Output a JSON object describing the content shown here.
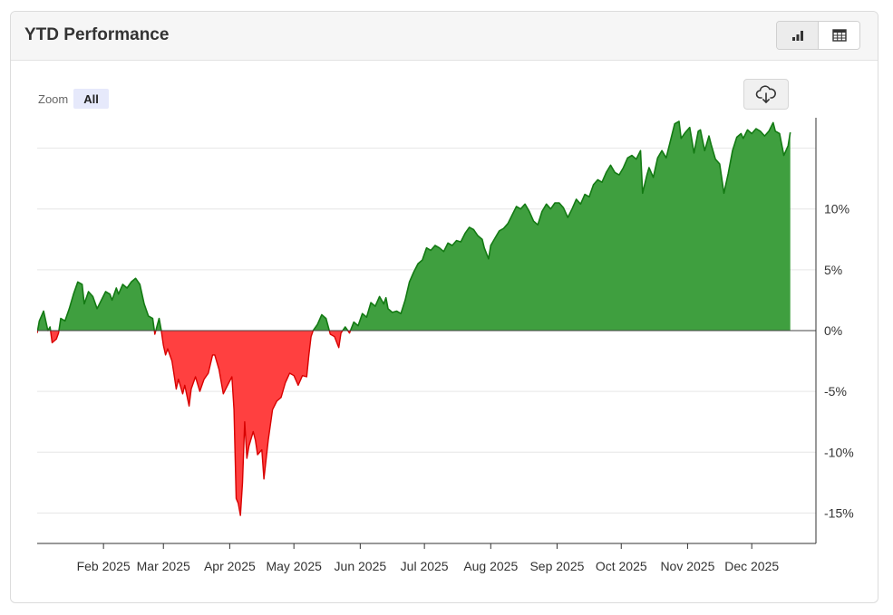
{
  "panel": {
    "title": "YTD Performance",
    "view_toggle": [
      {
        "name": "chart-view",
        "icon": "bar-chart-icon",
        "active": true
      },
      {
        "name": "table-view",
        "icon": "table-icon",
        "active": false
      }
    ]
  },
  "zoom": {
    "label": "Zoom",
    "options": [
      "All"
    ],
    "selected": "All"
  },
  "download": {
    "icon": "cloud-download-icon"
  },
  "colors": {
    "positive": "#3f9f3f",
    "positive_line": "#137a13",
    "negative": "#ff4040",
    "negative_line": "#d80000",
    "grid": "#e6e6e6",
    "axis": "#333333"
  },
  "chart_data": {
    "type": "area",
    "title": "",
    "xlabel": "",
    "ylabel": "",
    "y_unit": "%",
    "ylim": [
      -17.5,
      17.5
    ],
    "y_ticks": [
      -15,
      -10,
      -5,
      0,
      5,
      10
    ],
    "y_tick_labels": [
      "-15%",
      "-10%",
      "-5%",
      "0%",
      "5%",
      "10%"
    ],
    "x_range": [
      "2025-01-01",
      "2025-12-31"
    ],
    "x_ticks": [
      {
        "date": "2025-02-01",
        "label": "Feb 2025"
      },
      {
        "date": "2025-03-01",
        "label": "Mar 2025"
      },
      {
        "date": "2025-04-01",
        "label": "Apr 2025"
      },
      {
        "date": "2025-05-01",
        "label": "May 2025"
      },
      {
        "date": "2025-06-01",
        "label": "Jun 2025"
      },
      {
        "date": "2025-07-01",
        "label": "Jul 2025"
      },
      {
        "date": "2025-08-01",
        "label": "Aug 2025"
      },
      {
        "date": "2025-09-01",
        "label": "Sep 2025"
      },
      {
        "date": "2025-10-01",
        "label": "Oct 2025"
      },
      {
        "date": "2025-11-01",
        "label": "Nov 2025"
      },
      {
        "date": "2025-12-01",
        "label": "Dec 2025"
      }
    ],
    "grid": true,
    "fill_rule": "green above 0%, red below 0%",
    "series": [
      {
        "values": [
          {
            "x": "2025-01-01",
            "y": -0.2
          },
          {
            "x": "2025-01-02",
            "y": 0.8
          },
          {
            "x": "2025-01-04",
            "y": 1.6
          },
          {
            "x": "2025-01-06",
            "y": 0.0
          },
          {
            "x": "2025-01-07",
            "y": 0.3
          },
          {
            "x": "2025-01-08",
            "y": -1.0
          },
          {
            "x": "2025-01-10",
            "y": -0.7
          },
          {
            "x": "2025-01-11",
            "y": -0.2
          },
          {
            "x": "2025-01-12",
            "y": 1.0
          },
          {
            "x": "2025-01-14",
            "y": 0.8
          },
          {
            "x": "2025-01-16",
            "y": 1.8
          },
          {
            "x": "2025-01-18",
            "y": 3.0
          },
          {
            "x": "2025-01-20",
            "y": 4.0
          },
          {
            "x": "2025-01-22",
            "y": 3.8
          },
          {
            "x": "2025-01-23",
            "y": 2.2
          },
          {
            "x": "2025-01-25",
            "y": 3.2
          },
          {
            "x": "2025-01-27",
            "y": 2.8
          },
          {
            "x": "2025-01-29",
            "y": 1.8
          },
          {
            "x": "2025-01-31",
            "y": 2.5
          },
          {
            "x": "2025-02-02",
            "y": 3.2
          },
          {
            "x": "2025-02-04",
            "y": 3.0
          },
          {
            "x": "2025-02-05",
            "y": 2.5
          },
          {
            "x": "2025-02-07",
            "y": 3.5
          },
          {
            "x": "2025-02-08",
            "y": 3.0
          },
          {
            "x": "2025-02-10",
            "y": 3.8
          },
          {
            "x": "2025-02-12",
            "y": 3.5
          },
          {
            "x": "2025-02-14",
            "y": 4.0
          },
          {
            "x": "2025-02-16",
            "y": 4.3
          },
          {
            "x": "2025-02-18",
            "y": 3.8
          },
          {
            "x": "2025-02-20",
            "y": 2.2
          },
          {
            "x": "2025-02-22",
            "y": 1.2
          },
          {
            "x": "2025-02-24",
            "y": 1.0
          },
          {
            "x": "2025-02-25",
            "y": -0.3
          },
          {
            "x": "2025-02-27",
            "y": 1.0
          },
          {
            "x": "2025-02-28",
            "y": 0.0
          },
          {
            "x": "2025-03-01",
            "y": -1.2
          },
          {
            "x": "2025-03-02",
            "y": -2.0
          },
          {
            "x": "2025-03-03",
            "y": -1.5
          },
          {
            "x": "2025-03-05",
            "y": -2.5
          },
          {
            "x": "2025-03-07",
            "y": -4.8
          },
          {
            "x": "2025-03-08",
            "y": -4.0
          },
          {
            "x": "2025-03-10",
            "y": -5.2
          },
          {
            "x": "2025-03-11",
            "y": -4.5
          },
          {
            "x": "2025-03-13",
            "y": -6.2
          },
          {
            "x": "2025-03-14",
            "y": -4.8
          },
          {
            "x": "2025-03-16",
            "y": -3.8
          },
          {
            "x": "2025-03-18",
            "y": -5.0
          },
          {
            "x": "2025-03-20",
            "y": -4.0
          },
          {
            "x": "2025-03-22",
            "y": -3.5
          },
          {
            "x": "2025-03-24",
            "y": -2.0
          },
          {
            "x": "2025-03-25",
            "y": -2.0
          },
          {
            "x": "2025-03-27",
            "y": -3.2
          },
          {
            "x": "2025-03-29",
            "y": -5.2
          },
          {
            "x": "2025-03-31",
            "y": -4.5
          },
          {
            "x": "2025-04-02",
            "y": -3.8
          },
          {
            "x": "2025-04-03",
            "y": -6.5
          },
          {
            "x": "2025-04-04",
            "y": -13.8
          },
          {
            "x": "2025-04-05",
            "y": -14.2
          },
          {
            "x": "2025-04-06",
            "y": -15.2
          },
          {
            "x": "2025-04-07",
            "y": -12.5
          },
          {
            "x": "2025-04-08",
            "y": -7.5
          },
          {
            "x": "2025-04-09",
            "y": -10.5
          },
          {
            "x": "2025-04-10",
            "y": -9.5
          },
          {
            "x": "2025-04-12",
            "y": -8.3
          },
          {
            "x": "2025-04-13",
            "y": -9.0
          },
          {
            "x": "2025-04-14",
            "y": -10.2
          },
          {
            "x": "2025-04-16",
            "y": -9.8
          },
          {
            "x": "2025-04-17",
            "y": -12.2
          },
          {
            "x": "2025-04-19",
            "y": -9.0
          },
          {
            "x": "2025-04-21",
            "y": -6.5
          },
          {
            "x": "2025-04-23",
            "y": -5.8
          },
          {
            "x": "2025-04-25",
            "y": -5.5
          },
          {
            "x": "2025-04-27",
            "y": -4.3
          },
          {
            "x": "2025-04-29",
            "y": -3.5
          },
          {
            "x": "2025-05-01",
            "y": -3.7
          },
          {
            "x": "2025-05-03",
            "y": -4.5
          },
          {
            "x": "2025-05-05",
            "y": -3.7
          },
          {
            "x": "2025-05-07",
            "y": -3.8
          },
          {
            "x": "2025-05-08",
            "y": -2.0
          },
          {
            "x": "2025-05-09",
            "y": -0.5
          },
          {
            "x": "2025-05-10",
            "y": 0.0
          },
          {
            "x": "2025-05-12",
            "y": 0.5
          },
          {
            "x": "2025-05-14",
            "y": 1.3
          },
          {
            "x": "2025-05-16",
            "y": 1.0
          },
          {
            "x": "2025-05-18",
            "y": -0.3
          },
          {
            "x": "2025-05-20",
            "y": -0.5
          },
          {
            "x": "2025-05-22",
            "y": -1.4
          },
          {
            "x": "2025-05-23",
            "y": -0.2
          },
          {
            "x": "2025-05-25",
            "y": 0.3
          },
          {
            "x": "2025-05-27",
            "y": -0.2
          },
          {
            "x": "2025-05-29",
            "y": 0.7
          },
          {
            "x": "2025-05-31",
            "y": 0.4
          },
          {
            "x": "2025-06-02",
            "y": 1.4
          },
          {
            "x": "2025-06-04",
            "y": 1.1
          },
          {
            "x": "2025-06-06",
            "y": 2.3
          },
          {
            "x": "2025-06-08",
            "y": 2.0
          },
          {
            "x": "2025-06-10",
            "y": 2.8
          },
          {
            "x": "2025-06-12",
            "y": 2.2
          },
          {
            "x": "2025-06-13",
            "y": 2.7
          },
          {
            "x": "2025-06-14",
            "y": 1.8
          },
          {
            "x": "2025-06-16",
            "y": 1.5
          },
          {
            "x": "2025-06-18",
            "y": 1.6
          },
          {
            "x": "2025-06-20",
            "y": 1.4
          },
          {
            "x": "2025-06-22",
            "y": 2.5
          },
          {
            "x": "2025-06-24",
            "y": 4.0
          },
          {
            "x": "2025-06-26",
            "y": 4.8
          },
          {
            "x": "2025-06-28",
            "y": 5.5
          },
          {
            "x": "2025-06-30",
            "y": 5.8
          },
          {
            "x": "2025-07-02",
            "y": 6.8
          },
          {
            "x": "2025-07-04",
            "y": 6.6
          },
          {
            "x": "2025-07-06",
            "y": 7.0
          },
          {
            "x": "2025-07-08",
            "y": 6.8
          },
          {
            "x": "2025-07-10",
            "y": 6.5
          },
          {
            "x": "2025-07-12",
            "y": 7.2
          },
          {
            "x": "2025-07-14",
            "y": 7.0
          },
          {
            "x": "2025-07-16",
            "y": 7.4
          },
          {
            "x": "2025-07-18",
            "y": 7.3
          },
          {
            "x": "2025-07-20",
            "y": 8.0
          },
          {
            "x": "2025-07-22",
            "y": 8.5
          },
          {
            "x": "2025-07-24",
            "y": 8.3
          },
          {
            "x": "2025-07-26",
            "y": 7.8
          },
          {
            "x": "2025-07-28",
            "y": 7.5
          },
          {
            "x": "2025-07-29",
            "y": 6.8
          },
          {
            "x": "2025-07-31",
            "y": 5.9
          },
          {
            "x": "2025-08-01",
            "y": 7.0
          },
          {
            "x": "2025-08-03",
            "y": 7.6
          },
          {
            "x": "2025-08-05",
            "y": 8.2
          },
          {
            "x": "2025-08-07",
            "y": 8.4
          },
          {
            "x": "2025-08-09",
            "y": 8.8
          },
          {
            "x": "2025-08-11",
            "y": 9.5
          },
          {
            "x": "2025-08-13",
            "y": 10.2
          },
          {
            "x": "2025-08-15",
            "y": 10.0
          },
          {
            "x": "2025-08-17",
            "y": 10.4
          },
          {
            "x": "2025-08-19",
            "y": 9.8
          },
          {
            "x": "2025-08-21",
            "y": 9.0
          },
          {
            "x": "2025-08-23",
            "y": 8.7
          },
          {
            "x": "2025-08-25",
            "y": 9.8
          },
          {
            "x": "2025-08-27",
            "y": 10.4
          },
          {
            "x": "2025-08-29",
            "y": 10.0
          },
          {
            "x": "2025-08-31",
            "y": 10.5
          },
          {
            "x": "2025-09-02",
            "y": 10.5
          },
          {
            "x": "2025-09-04",
            "y": 10.1
          },
          {
            "x": "2025-09-06",
            "y": 9.3
          },
          {
            "x": "2025-09-08",
            "y": 10.0
          },
          {
            "x": "2025-09-10",
            "y": 10.8
          },
          {
            "x": "2025-09-12",
            "y": 10.4
          },
          {
            "x": "2025-09-14",
            "y": 11.2
          },
          {
            "x": "2025-09-16",
            "y": 11.0
          },
          {
            "x": "2025-09-18",
            "y": 12.0
          },
          {
            "x": "2025-09-20",
            "y": 12.4
          },
          {
            "x": "2025-09-22",
            "y": 12.2
          },
          {
            "x": "2025-09-24",
            "y": 13.0
          },
          {
            "x": "2025-09-26",
            "y": 13.6
          },
          {
            "x": "2025-09-28",
            "y": 13.0
          },
          {
            "x": "2025-09-30",
            "y": 12.8
          },
          {
            "x": "2025-10-02",
            "y": 13.4
          },
          {
            "x": "2025-10-04",
            "y": 14.2
          },
          {
            "x": "2025-10-06",
            "y": 14.4
          },
          {
            "x": "2025-10-08",
            "y": 14.1
          },
          {
            "x": "2025-10-10",
            "y": 14.8
          },
          {
            "x": "2025-10-11",
            "y": 11.3
          },
          {
            "x": "2025-10-13",
            "y": 12.8
          },
          {
            "x": "2025-10-14",
            "y": 13.4
          },
          {
            "x": "2025-10-16",
            "y": 12.6
          },
          {
            "x": "2025-10-18",
            "y": 14.2
          },
          {
            "x": "2025-10-20",
            "y": 14.8
          },
          {
            "x": "2025-10-22",
            "y": 14.2
          },
          {
            "x": "2025-10-24",
            "y": 15.6
          },
          {
            "x": "2025-10-26",
            "y": 17.0
          },
          {
            "x": "2025-10-28",
            "y": 17.2
          },
          {
            "x": "2025-10-29",
            "y": 15.8
          },
          {
            "x": "2025-10-31",
            "y": 16.3
          },
          {
            "x": "2025-11-02",
            "y": 16.7
          },
          {
            "x": "2025-11-04",
            "y": 14.6
          },
          {
            "x": "2025-11-06",
            "y": 16.4
          },
          {
            "x": "2025-11-07",
            "y": 16.5
          },
          {
            "x": "2025-11-09",
            "y": 14.8
          },
          {
            "x": "2025-11-11",
            "y": 16.0
          },
          {
            "x": "2025-11-12",
            "y": 15.3
          },
          {
            "x": "2025-11-14",
            "y": 14.1
          },
          {
            "x": "2025-11-16",
            "y": 13.7
          },
          {
            "x": "2025-11-18",
            "y": 11.3
          },
          {
            "x": "2025-11-20",
            "y": 12.9
          },
          {
            "x": "2025-11-22",
            "y": 14.8
          },
          {
            "x": "2025-11-24",
            "y": 15.9
          },
          {
            "x": "2025-11-26",
            "y": 16.2
          },
          {
            "x": "2025-11-27",
            "y": 15.8
          },
          {
            "x": "2025-11-29",
            "y": 16.5
          },
          {
            "x": "2025-12-01",
            "y": 16.2
          },
          {
            "x": "2025-12-03",
            "y": 16.6
          },
          {
            "x": "2025-12-05",
            "y": 16.4
          },
          {
            "x": "2025-12-07",
            "y": 16.0
          },
          {
            "x": "2025-12-09",
            "y": 16.4
          },
          {
            "x": "2025-12-11",
            "y": 17.1
          },
          {
            "x": "2025-12-12",
            "y": 16.4
          },
          {
            "x": "2025-12-14",
            "y": 16.2
          },
          {
            "x": "2025-12-16",
            "y": 14.4
          },
          {
            "x": "2025-12-18",
            "y": 15.2
          },
          {
            "x": "2025-12-19",
            "y": 16.3
          }
        ]
      }
    ]
  }
}
